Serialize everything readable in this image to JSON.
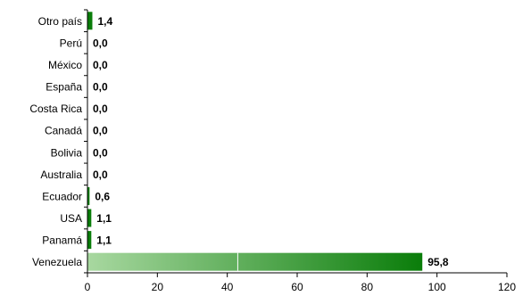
{
  "chart_data": {
    "type": "bar",
    "orientation": "horizontal",
    "categories": [
      "Otro país",
      "Perú",
      "México",
      "España",
      "Costa Rica",
      "Canadá",
      "Bolivia",
      "Australia",
      "Ecuador",
      "USA",
      "Panamá",
      "Venezuela"
    ],
    "values": [
      1.4,
      0.0,
      0.0,
      0.0,
      0.0,
      0.0,
      0.0,
      0.0,
      0.6,
      1.1,
      1.1,
      95.8
    ],
    "value_labels": [
      "1,4",
      "0,0",
      "0,0",
      "0,0",
      "0,0",
      "0,0",
      "0,0",
      "0,0",
      "0,6",
      "1,1",
      "1,1",
      "95,8"
    ],
    "xlim": [
      0,
      120
    ],
    "xticks": [
      "0",
      "20",
      "40",
      "60",
      "80",
      "100",
      "120"
    ],
    "grid": false,
    "legend": "none",
    "colors": {
      "bar_dark": "#0a7d0a",
      "bar_light": "#a8d8a0",
      "axis": "#000000"
    }
  }
}
